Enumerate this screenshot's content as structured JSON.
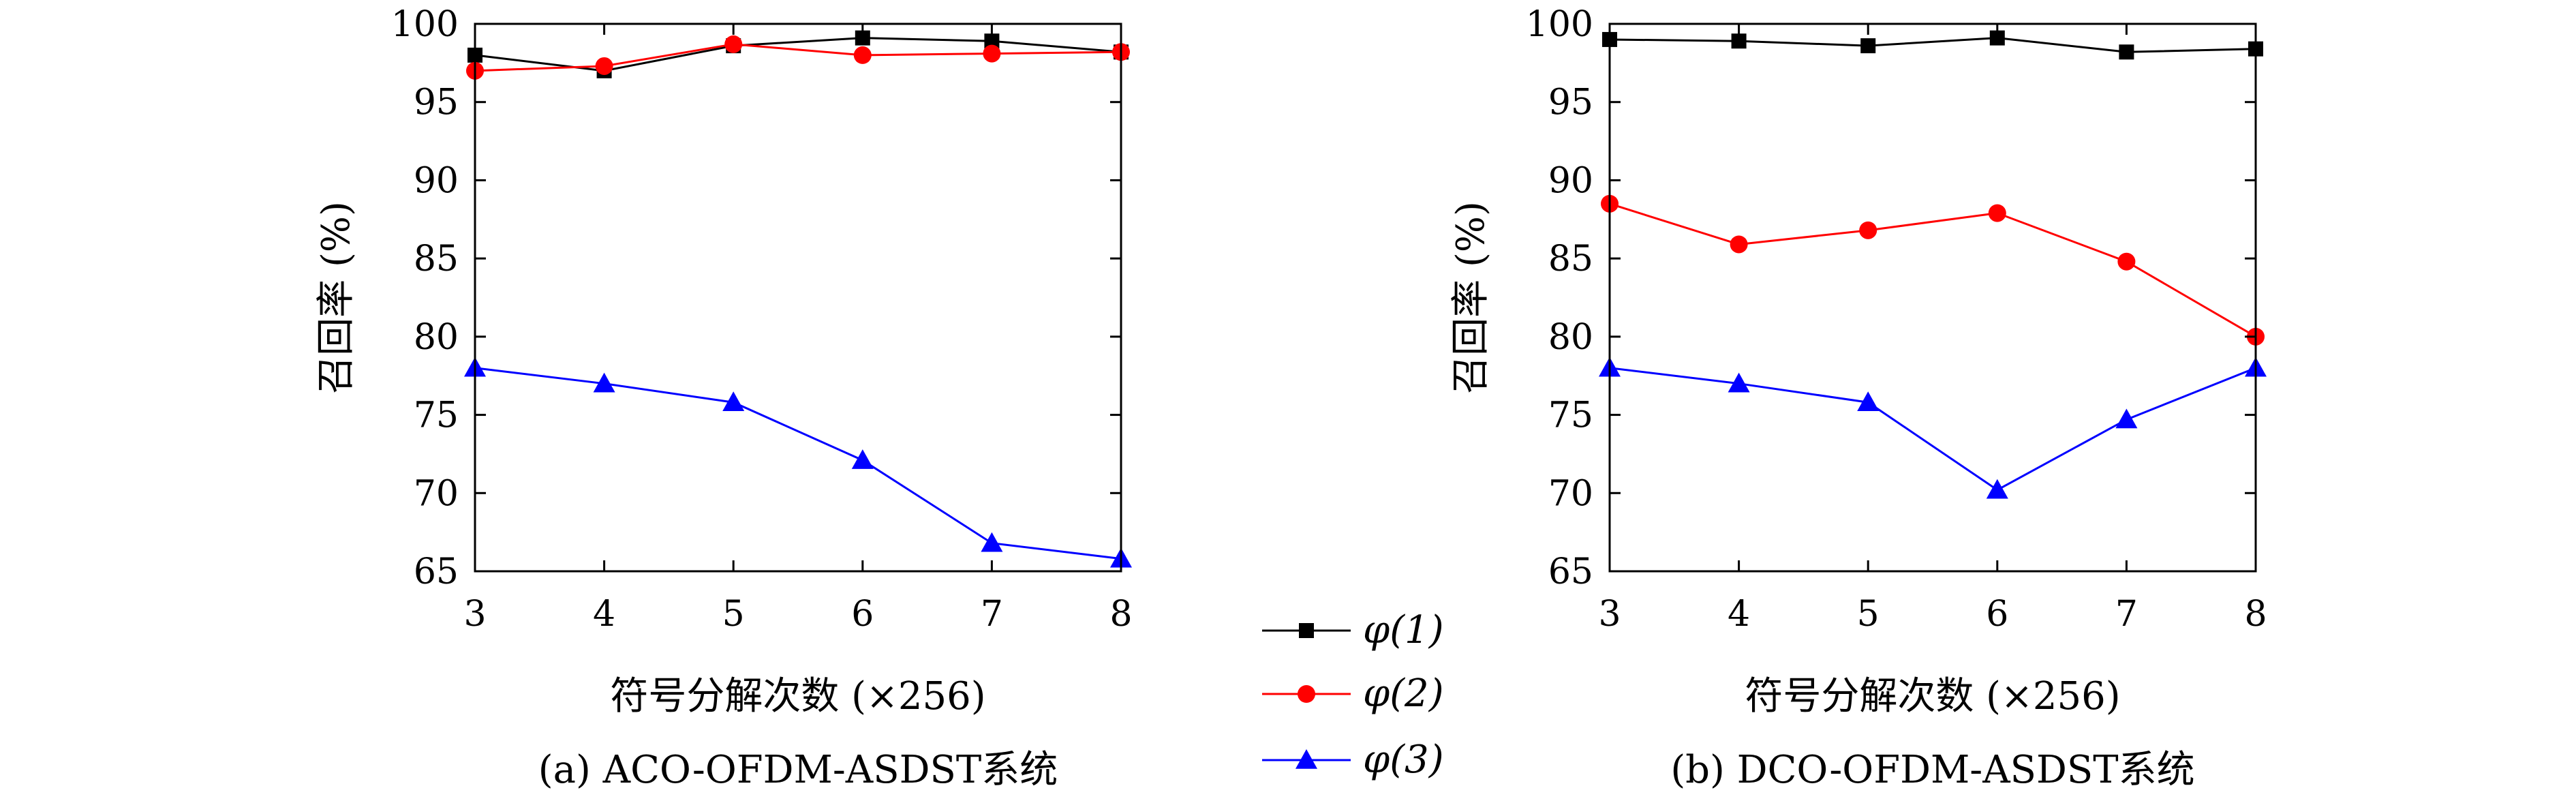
{
  "chart_data": [
    {
      "type": "line",
      "title": "",
      "caption": "(a) ACO-OFDM-ASDST系统",
      "xlabel": "符号分解次数 (×256)",
      "ylabel": "召回率 (%)",
      "xlim": [
        3,
        8
      ],
      "ylim": [
        65,
        100
      ],
      "x": [
        3,
        4,
        5,
        6,
        7,
        8
      ],
      "xticks": [
        "3",
        "4",
        "5",
        "6",
        "7",
        "8"
      ],
      "yticks": [
        "65",
        "70",
        "75",
        "80",
        "85",
        "90",
        "95",
        "100"
      ],
      "grid": false,
      "series": [
        {
          "name": "φ(1)",
          "color": "#000000",
          "marker": "square",
          "values": [
            98.0,
            97.0,
            98.6,
            99.1,
            98.9,
            98.2
          ]
        },
        {
          "name": "φ(2)",
          "color": "#ff0000",
          "marker": "circle",
          "values": [
            97.0,
            97.3,
            98.7,
            98.0,
            98.1,
            98.2
          ]
        },
        {
          "name": "φ(3)",
          "color": "#0000ff",
          "marker": "triangle",
          "values": [
            78.0,
            77.0,
            75.8,
            72.1,
            66.8,
            65.8
          ]
        }
      ]
    },
    {
      "type": "line",
      "title": "",
      "caption": "(b) DCO-OFDM-ASDST系统",
      "xlabel": "符号分解次数 (×256)",
      "ylabel": "召回率 (%)",
      "xlim": [
        3,
        8
      ],
      "ylim": [
        65,
        100
      ],
      "x": [
        3,
        4,
        5,
        6,
        7,
        8
      ],
      "xticks": [
        "3",
        "4",
        "5",
        "6",
        "7",
        "8"
      ],
      "yticks": [
        "65",
        "70",
        "75",
        "80",
        "85",
        "90",
        "95",
        "100"
      ],
      "grid": false,
      "series": [
        {
          "name": "φ(1)",
          "color": "#000000",
          "marker": "square",
          "values": [
            99.0,
            98.9,
            98.6,
            99.1,
            98.2,
            98.4
          ]
        },
        {
          "name": "φ(2)",
          "color": "#ff0000",
          "marker": "circle",
          "values": [
            88.5,
            85.9,
            86.8,
            87.9,
            84.8,
            80.0
          ]
        },
        {
          "name": "φ(3)",
          "color": "#0000ff",
          "marker": "triangle",
          "values": [
            78.0,
            77.0,
            75.8,
            70.2,
            74.7,
            78.0
          ]
        }
      ]
    }
  ],
  "legend": {
    "placement": "center-between-panels",
    "items": [
      {
        "label": "φ(1)",
        "color": "#000000",
        "marker": "square"
      },
      {
        "label": "φ(2)",
        "color": "#ff0000",
        "marker": "circle"
      },
      {
        "label": "φ(3)",
        "color": "#0000ff",
        "marker": "triangle"
      }
    ]
  }
}
